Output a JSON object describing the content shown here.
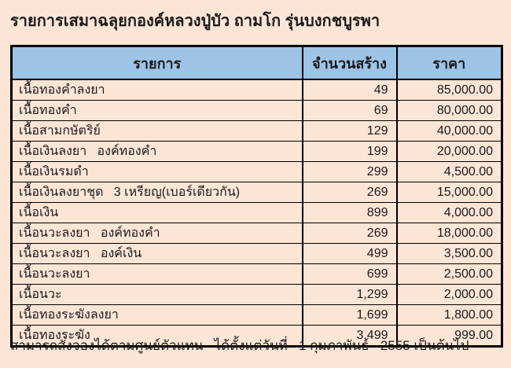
{
  "title": "รายการเสมาฉลุยกองค์หลวงปู่บัว ถามโก รุ่นบงกชบูรพา",
  "table": {
    "headers": [
      "รายการ",
      "จำนวนสร้าง",
      "ราคา"
    ],
    "rows": [
      {
        "name": "เนื้อทองคำลงยา",
        "quantity": "49",
        "price": "85,000.00"
      },
      {
        "name": "เนื้อทองคำ",
        "quantity": "69",
        "price": "80,000.00"
      },
      {
        "name": "เนื้อสามกษัตริย์",
        "quantity": "129",
        "price": "40,000.00"
      },
      {
        "name": "เนื้อเงินลงยา   องค์ทองคำ",
        "quantity": "199",
        "price": "20,000.00"
      },
      {
        "name": "เนื้อเงินรมดำ",
        "quantity": "299",
        "price": "4,500.00"
      },
      {
        "name": "เนื้อเงินลงยาชุด   3 เหรียญ(เบอร์เดียวกัน)",
        "quantity": "269",
        "price": "15,000.00"
      },
      {
        "name": "เนื้อเงิน",
        "quantity": "899",
        "price": "4,000.00"
      },
      {
        "name": "เนื้อนวะลงยา   องค์ทองคำ",
        "quantity": "269",
        "price": "18,000.00"
      },
      {
        "name": "เนื้อนวะลงยา   องค์เงิน",
        "quantity": "499",
        "price": "3,500.00"
      },
      {
        "name": "เนื้อนวะลงยา",
        "quantity": "699",
        "price": "2,500.00"
      },
      {
        "name": "เนื้อนวะ",
        "quantity": "1,299",
        "price": "2,000.00"
      },
      {
        "name": "เนื้อทองระฆังลงยา",
        "quantity": "1,699",
        "price": "1,800.00"
      },
      {
        "name": "เนื้อทองระฆัง",
        "quantity": "3,499",
        "price": "999.00"
      }
    ]
  },
  "footer": "สามารถสั่งจองได้ตามศูนย์ตัวแทน   ได้ตั้งแต่วันที่   1 กุมภาพันธ์   2555 เป็นต้นไป",
  "colors": {
    "background": "#FBE5D6",
    "header_bg": "#9DC3E6",
    "border": "#000000",
    "text": "#1A1A1A"
  }
}
